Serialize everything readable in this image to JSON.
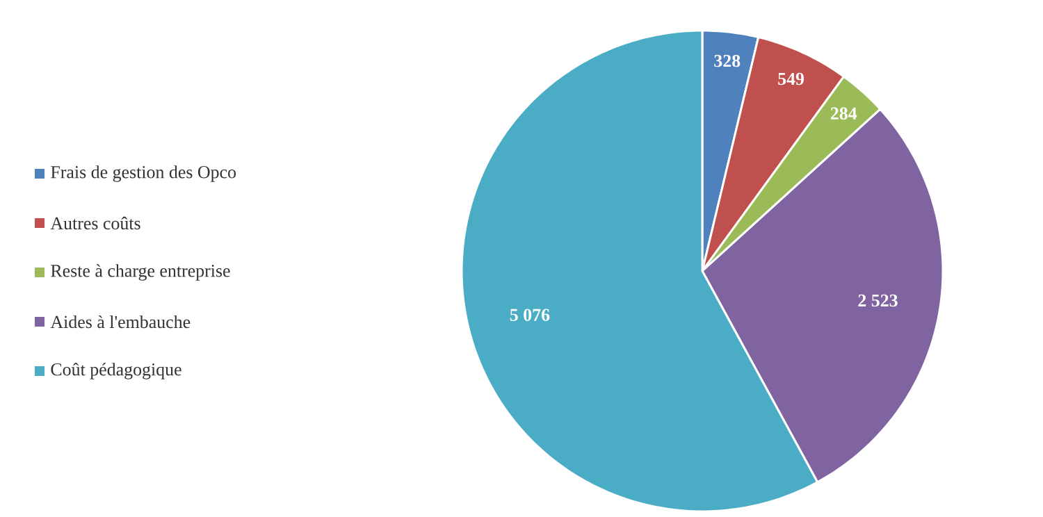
{
  "chart_data": {
    "type": "pie",
    "categories": [
      "Frais de gestion des Opco",
      "Autres coûts",
      "Reste à charge entreprise",
      "Aides à l'embauche",
      "Coût pédagogique"
    ],
    "values": [
      328,
      549,
      284,
      2523,
      5076
    ],
    "colors": [
      "#4f81bd",
      "#c0504d",
      "#9bbb59",
      "#8064a2",
      "#4bacc6"
    ],
    "value_labels": [
      "328",
      "549",
      "284",
      "2 523",
      "5 076"
    ],
    "legend": "left"
  }
}
